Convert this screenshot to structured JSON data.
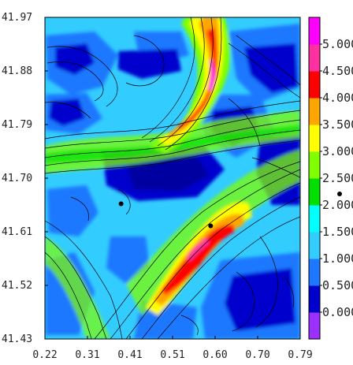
{
  "figure": {
    "type": "contour-map-with-streamlines",
    "x_ticks": [
      "0.22",
      "0.31",
      "0.41",
      "0.51",
      "0.60",
      "0.70",
      "0.79"
    ],
    "y_ticks": [
      "41.97",
      "41.88",
      "41.79",
      "41.70",
      "41.61",
      "41.52",
      "41.43"
    ],
    "xlim": [
      0.22,
      0.79
    ],
    "ylim": [
      41.43,
      41.97
    ],
    "colorbar": {
      "levels": [
        "0.000",
        "0.500",
        "1.000",
        "1.500",
        "2.000",
        "2.500",
        "3.000",
        "3.500",
        "4.000",
        "4.500",
        "5.000"
      ],
      "colors": [
        "#9b30ff",
        "#0000cd",
        "#1e78ff",
        "#33ccff",
        "#00ffff",
        "#00e000",
        "#7fff00",
        "#ffff00",
        "#ffa500",
        "#ff0000",
        "#ff30a0",
        "#ff00ff"
      ]
    },
    "markers": [
      {
        "x": 0.39,
        "y": 41.657
      },
      {
        "x": 0.59,
        "y": 41.62
      }
    ]
  }
}
